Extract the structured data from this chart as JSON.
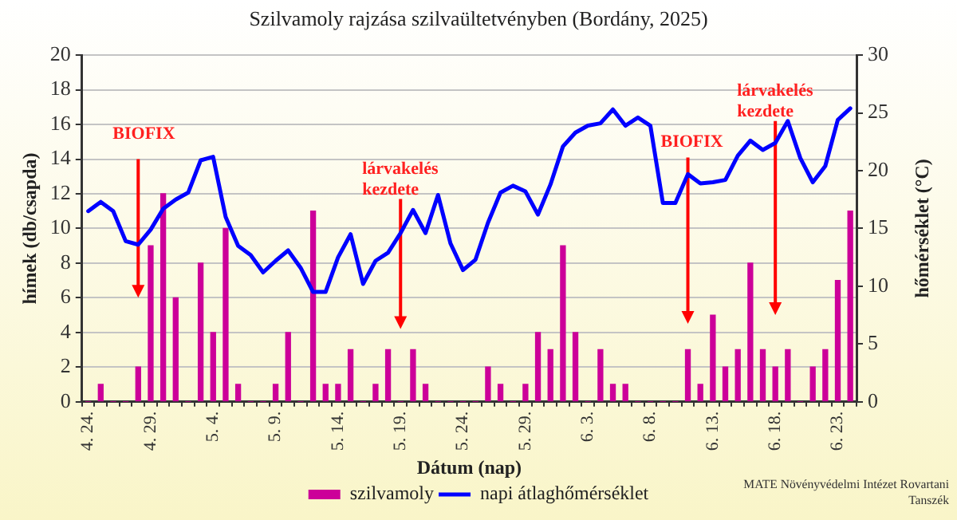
{
  "chart_data": {
    "type": "bar",
    "title": "Szilvamoly rajzása szilvaültetvényben (Bordány, 2025)",
    "xlabel": "Dátum (nap)",
    "ylabel": "hímek (db/csapda)",
    "y2label": "hőmérséklet (°C)",
    "categories": [
      "4. 24.",
      null,
      null,
      null,
      null,
      "4. 29.",
      null,
      null,
      null,
      null,
      "5. 4.",
      null,
      null,
      null,
      null,
      "5. 9.",
      null,
      null,
      null,
      null,
      "5. 14.",
      null,
      null,
      null,
      null,
      "5. 19.",
      null,
      null,
      null,
      null,
      "5. 24.",
      null,
      null,
      null,
      null,
      "5. 29.",
      null,
      null,
      null,
      null,
      "6. 3.",
      null,
      null,
      null,
      null,
      "6. 8.",
      null,
      null,
      null,
      null,
      "6. 13.",
      null,
      null,
      null,
      null,
      "6. 18.",
      null,
      null,
      null,
      null,
      "6. 23.",
      null
    ],
    "series": [
      {
        "name": "szilvamoly",
        "type": "bar",
        "color": "#cc0099",
        "values": [
          0,
          1,
          0,
          0,
          2,
          9,
          12,
          6,
          0,
          8,
          4,
          10,
          1,
          0,
          0,
          1,
          4,
          0,
          11,
          1,
          1,
          3,
          0,
          1,
          3,
          0,
          3,
          1,
          0,
          0,
          0,
          0,
          2,
          1,
          0,
          1,
          4,
          3,
          9,
          4,
          0,
          3,
          1,
          1,
          0,
          0,
          0,
          0,
          3,
          1,
          5,
          2,
          3,
          8,
          3,
          2,
          3,
          0,
          2,
          3,
          7,
          11
        ]
      },
      {
        "name": "napi átlaghőmérséklet",
        "type": "line",
        "color": "#0000ff",
        "axis": "y2",
        "values": [
          16.5,
          17.3,
          16.5,
          13.9,
          13.6,
          14.9,
          16.7,
          17.5,
          18.1,
          20.9,
          21.2,
          16.0,
          13.5,
          12.7,
          11.2,
          12.2,
          13.1,
          11.6,
          9.5,
          9.5,
          12.5,
          14.5,
          10.2,
          12.2,
          12.9,
          14.6,
          16.6,
          14.6,
          17.9,
          13.7,
          11.4,
          12.3,
          15.5,
          18.1,
          18.7,
          18.2,
          16.2,
          18.8,
          22.1,
          23.3,
          23.9,
          24.1,
          25.3,
          23.9,
          24.6,
          23.9,
          17.2,
          17.2,
          19.7,
          18.9,
          19.0,
          19.2,
          21.3,
          22.6,
          21.8,
          22.4,
          24.3,
          21.1,
          19.0,
          20.4,
          24.4,
          25.4
        ]
      }
    ],
    "ylim": [
      0,
      20
    ],
    "yticks": [
      0,
      2,
      4,
      6,
      8,
      10,
      12,
      14,
      16,
      18,
      20
    ],
    "y2lim": [
      0,
      30
    ],
    "y2ticks": [
      0,
      5,
      10,
      15,
      20,
      25,
      30
    ],
    "grid": "y",
    "legend": "bottom",
    "marker": "none",
    "annotations": [
      "BIOFIX",
      "lárvakelés kezdete",
      "BIOFIX",
      "lárvakelés kezdete",
      "MATE Növényvédelmi Intézet Rovartani Tanszék"
    ]
  }
}
